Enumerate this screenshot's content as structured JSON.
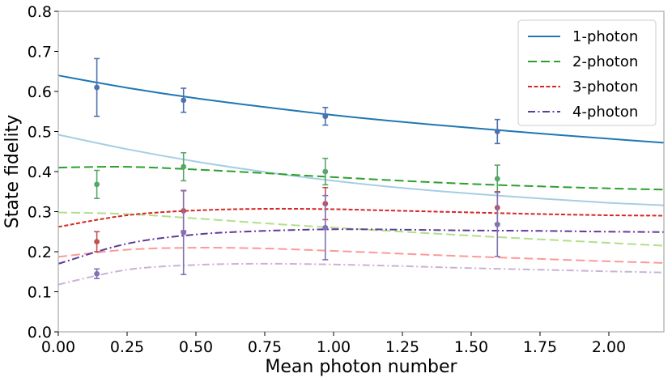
{
  "chart_data": {
    "type": "line",
    "title": "",
    "xlabel": "Mean photon number",
    "ylabel": "State fidelity",
    "xlim": [
      0,
      2.2
    ],
    "ylim": [
      0,
      0.8
    ],
    "xticks": [
      0,
      0.25,
      0.5,
      0.75,
      1.0,
      1.25,
      1.5,
      1.75,
      2.0
    ],
    "xtick_labels": [
      "0.00",
      "0.25",
      "0.50",
      "0.75",
      "1.00",
      "1.25",
      "1.50",
      "1.75",
      "2.00"
    ],
    "yticks": [
      0,
      0.1,
      0.2,
      0.3,
      0.4,
      0.5,
      0.6,
      0.7,
      0.8
    ],
    "ytick_labels": [
      "0.0",
      "0.1",
      "0.2",
      "0.3",
      "0.4",
      "0.5",
      "0.6",
      "0.7",
      "0.8"
    ],
    "grid": false,
    "legend_position": "top-right",
    "legend": [
      {
        "label": "1-photon",
        "color": "#1f77b4",
        "dash": "solid"
      },
      {
        "label": "2-photon",
        "color": "#2ca02c",
        "dash": "dashed"
      },
      {
        "label": "3-photon",
        "color": "#d62728",
        "dash": "dotted-dense"
      },
      {
        "label": "4-photon",
        "color": "#5e3c99",
        "dash": "dashdot"
      }
    ],
    "series": [
      {
        "name": "1-photon",
        "color": "#1f77b4",
        "dash": "solid",
        "x": [
          0.0,
          0.25,
          0.5,
          0.75,
          1.0,
          1.25,
          1.5,
          1.75,
          2.0,
          2.2
        ],
        "y": [
          0.64,
          0.609,
          0.583,
          0.561,
          0.541,
          0.524,
          0.509,
          0.495,
          0.482,
          0.472
        ]
      },
      {
        "name": "2-photon",
        "color": "#2ca02c",
        "dash": "dashed",
        "x": [
          0.0,
          0.25,
          0.5,
          0.75,
          1.0,
          1.25,
          1.5,
          1.75,
          2.0,
          2.2
        ],
        "y": [
          0.41,
          0.412,
          0.405,
          0.396,
          0.386,
          0.377,
          0.369,
          0.363,
          0.358,
          0.355
        ]
      },
      {
        "name": "3-photon",
        "color": "#d62728",
        "dash": "dotted-dense",
        "x": [
          0.0,
          0.25,
          0.5,
          0.75,
          1.0,
          1.25,
          1.5,
          1.75,
          2.0,
          2.2
        ],
        "y": [
          0.262,
          0.291,
          0.303,
          0.307,
          0.306,
          0.302,
          0.298,
          0.294,
          0.291,
          0.29
        ]
      },
      {
        "name": "4-photon",
        "color": "#5e3c99",
        "dash": "dashdot",
        "x": [
          0.0,
          0.25,
          0.5,
          0.75,
          1.0,
          1.25,
          1.5,
          1.75,
          2.0,
          2.2
        ],
        "y": [
          0.17,
          0.22,
          0.243,
          0.252,
          0.256,
          0.255,
          0.253,
          0.252,
          0.25,
          0.249
        ]
      },
      {
        "name": "1-photon (light)",
        "color": "#a6cee3",
        "dash": "solid",
        "x": [
          0.0,
          0.25,
          0.5,
          0.75,
          1.0,
          1.25,
          1.5,
          1.75,
          2.0,
          2.2
        ],
        "y": [
          0.492,
          0.456,
          0.425,
          0.399,
          0.377,
          0.359,
          0.345,
          0.333,
          0.322,
          0.316
        ]
      },
      {
        "name": "2-photon (light)",
        "color": "#b2df8a",
        "dash": "dashed",
        "x": [
          0.0,
          0.25,
          0.5,
          0.75,
          1.0,
          1.25,
          1.5,
          1.75,
          2.0,
          2.2
        ],
        "y": [
          0.298,
          0.294,
          0.283,
          0.271,
          0.26,
          0.25,
          0.24,
          0.231,
          0.222,
          0.215
        ]
      },
      {
        "name": "3-photon (light)",
        "color": "#fb9a99",
        "dash": "dashed",
        "x": [
          0.0,
          0.25,
          0.5,
          0.75,
          1.0,
          1.25,
          1.5,
          1.75,
          2.0,
          2.2
        ],
        "y": [
          0.187,
          0.205,
          0.21,
          0.208,
          0.202,
          0.195,
          0.188,
          0.182,
          0.176,
          0.172
        ]
      },
      {
        "name": "4-photon (light)",
        "color": "#cab2d6",
        "dash": "dashdot",
        "x": [
          0.0,
          0.25,
          0.5,
          0.75,
          1.0,
          1.25,
          1.5,
          1.75,
          2.0,
          2.2
        ],
        "y": [
          0.118,
          0.155,
          0.167,
          0.17,
          0.168,
          0.164,
          0.159,
          0.155,
          0.151,
          0.148
        ]
      }
    ],
    "data_points": [
      {
        "name": "1-photon",
        "color": "#4c72b0",
        "x": [
          0.14,
          0.455,
          0.97,
          1.595
        ],
        "y": [
          0.61,
          0.578,
          0.538,
          0.5
        ],
        "err": [
          0.072,
          0.03,
          0.022,
          0.03
        ]
      },
      {
        "name": "2-photon",
        "color": "#55a868",
        "x": [
          0.14,
          0.455,
          0.97,
          1.595
        ],
        "y": [
          0.368,
          0.412,
          0.4,
          0.382
        ],
        "err": [
          0.035,
          0.035,
          0.033,
          0.034
        ]
      },
      {
        "name": "3-photon",
        "color": "#c44e52",
        "x": [
          0.14,
          0.455,
          0.97,
          1.595
        ],
        "y": [
          0.225,
          0.302,
          0.32,
          0.31
        ],
        "err": [
          0.025,
          0.05,
          0.04,
          0.04
        ]
      },
      {
        "name": "4-photon",
        "color": "#8172b2",
        "x": [
          0.14,
          0.455,
          0.97,
          1.595
        ],
        "y": [
          0.145,
          0.248,
          0.26,
          0.268
        ],
        "err": [
          0.012,
          0.105,
          0.08,
          0.08
        ]
      }
    ]
  }
}
